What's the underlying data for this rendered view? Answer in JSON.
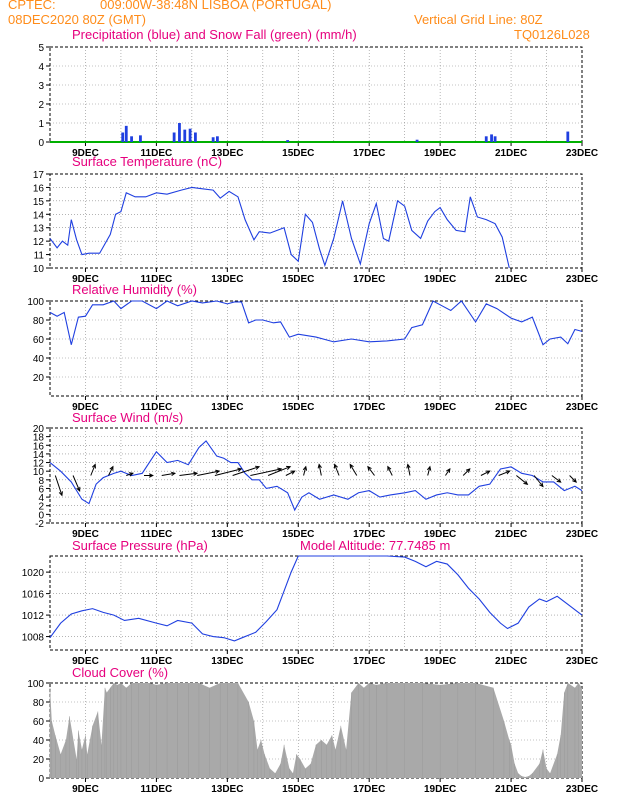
{
  "header": {
    "source": "CPTEC:",
    "location": "009:00W-38:48N  LISBOA (PORTUGAL)",
    "run": "08DEC2020 80Z (GMT)",
    "grid_note": "Vertical Grid Line: 80Z",
    "code": "TQ0126L028"
  },
  "x_ticks": [
    "9DEC",
    "11DEC",
    "13DEC",
    "15DEC",
    "17DEC",
    "19DEC",
    "21DEC",
    "23DEC"
  ],
  "colors": {
    "header": "#ff8c1a",
    "title": "#e6007e",
    "line": "#1f3fe0",
    "snow": "#00b000",
    "cloud": "#a9a9a9",
    "wind_arrow": "#000000"
  },
  "chart_data": [
    {
      "id": "precip",
      "type": "bar",
      "title": "Precipitation (blue) and Snow Fall (green) (mm/h)",
      "ylim": [
        0,
        5
      ],
      "yticks": [
        "0",
        "1",
        "2",
        "3",
        "4",
        "5"
      ],
      "series": [
        {
          "name": "Precipitation",
          "x": [
            10.05,
            10.15,
            10.3,
            10.55,
            11.5,
            11.65,
            11.8,
            11.95,
            12.1,
            12.6,
            12.72,
            14.7,
            18.35,
            20.3,
            20.45,
            20.55,
            22.6
          ],
          "values": [
            0.5,
            0.85,
            0.3,
            0.35,
            0.5,
            1.0,
            0.65,
            0.7,
            0.5,
            0.25,
            0.3,
            0.1,
            0.12,
            0.3,
            0.4,
            0.3,
            0.55
          ]
        },
        {
          "name": "Snow Fall",
          "x": [
            8.0,
            23.0
          ],
          "values": [
            0.0,
            0.0
          ]
        }
      ]
    },
    {
      "id": "temp",
      "type": "line",
      "title": "Surface Temperature (nC)",
      "ylim": [
        10,
        17
      ],
      "yticks": [
        "10",
        "11",
        "12",
        "13",
        "14",
        "15",
        "16",
        "17"
      ],
      "x": [
        8.0,
        8.2,
        8.35,
        8.5,
        8.6,
        8.75,
        8.9,
        9.1,
        9.4,
        9.7,
        9.85,
        10.0,
        10.15,
        10.4,
        10.7,
        11.0,
        11.3,
        11.7,
        12.0,
        12.3,
        12.6,
        12.8,
        13.05,
        13.3,
        13.5,
        13.75,
        13.9,
        14.2,
        14.6,
        14.8,
        15.0,
        15.2,
        15.4,
        15.6,
        15.75,
        16.0,
        16.25,
        16.5,
        16.75,
        17.0,
        17.2,
        17.4,
        17.55,
        17.8,
        18.0,
        18.2,
        18.45,
        18.65,
        18.85,
        19.0,
        19.2,
        19.45,
        19.7,
        19.85,
        20.05,
        20.3,
        20.55,
        20.75,
        20.95
      ],
      "values": [
        12.2,
        11.5,
        12.0,
        11.7,
        13.6,
        12.1,
        11.0,
        11.1,
        11.1,
        12.5,
        14.0,
        14.2,
        15.6,
        15.3,
        15.3,
        15.6,
        15.5,
        15.8,
        16.0,
        15.9,
        15.8,
        15.2,
        15.7,
        15.3,
        13.6,
        12.1,
        12.7,
        12.6,
        13.0,
        11.0,
        10.5,
        14.0,
        13.4,
        11.4,
        10.2,
        12.2,
        15.0,
        12.2,
        10.3,
        13.3,
        14.8,
        12.2,
        12.0,
        15.0,
        14.6,
        12.8,
        12.2,
        13.5,
        14.2,
        14.5,
        13.6,
        12.8,
        12.7,
        15.3,
        13.8,
        13.6,
        13.3,
        12.3,
        10.0
      ]
    },
    {
      "id": "rh",
      "type": "line",
      "title": "Relative Humidity (%)",
      "ylim": [
        0,
        100
      ],
      "yticks": [
        "20",
        "40",
        "60",
        "80",
        "100"
      ],
      "x": [
        8.0,
        8.2,
        8.4,
        8.6,
        8.8,
        9.0,
        9.2,
        9.5,
        9.8,
        10.0,
        10.3,
        10.6,
        11.0,
        11.3,
        11.6,
        12.0,
        12.3,
        12.7,
        13.0,
        13.2,
        13.4,
        13.6,
        13.8,
        14.0,
        14.3,
        14.5,
        14.75,
        15.0,
        15.5,
        16.0,
        16.5,
        17.0,
        17.5,
        18.0,
        18.2,
        18.5,
        18.8,
        19.0,
        19.3,
        19.6,
        20.0,
        20.3,
        20.6,
        21.0,
        21.3,
        21.6,
        21.9,
        22.1,
        22.4,
        22.6,
        22.8,
        23.0
      ],
      "values": [
        88,
        84,
        88,
        54,
        83,
        84,
        96,
        96,
        100,
        92,
        100,
        100,
        92,
        100,
        95,
        100,
        98,
        100,
        97,
        99,
        99,
        77,
        80,
        80,
        77,
        78,
        62,
        65,
        62,
        57,
        60,
        57,
        58,
        60,
        72,
        75,
        100,
        96,
        90,
        100,
        78,
        97,
        92,
        82,
        78,
        83,
        54,
        60,
        62,
        55,
        70,
        68
      ]
    },
    {
      "id": "wind",
      "type": "line",
      "title": "Surface Wind (m/s)",
      "ylim": [
        -2,
        20
      ],
      "yticks": [
        "-2",
        "0",
        "2",
        "4",
        "6",
        "8",
        "10",
        "12",
        "14",
        "16",
        "18",
        "20"
      ],
      "x": [
        8.0,
        8.3,
        8.6,
        8.9,
        9.1,
        9.3,
        9.5,
        9.8,
        10.0,
        10.3,
        10.6,
        11.0,
        11.3,
        11.6,
        11.9,
        12.2,
        12.4,
        12.7,
        12.9,
        13.1,
        13.3,
        13.5,
        13.7,
        13.9,
        14.1,
        14.4,
        14.7,
        14.9,
        15.1,
        15.3,
        15.6,
        16.0,
        16.4,
        16.7,
        17.0,
        17.3,
        17.6,
        18.0,
        18.3,
        18.6,
        18.9,
        19.2,
        19.5,
        19.8,
        20.1,
        20.4,
        20.7,
        21.0,
        21.3,
        21.6,
        21.9,
        22.2,
        22.5,
        22.8,
        23.0
      ],
      "values": [
        12,
        10,
        7.5,
        3.5,
        2.5,
        7,
        8.5,
        9.5,
        10,
        9,
        9.5,
        14.5,
        12,
        12.5,
        11.5,
        15.5,
        17,
        13.5,
        13,
        12,
        12,
        9.5,
        8,
        8,
        6,
        6.5,
        5,
        1,
        4,
        5,
        3.5,
        4.5,
        3.5,
        5,
        5.5,
        4,
        4.5,
        5,
        5.5,
        3.5,
        4.5,
        5,
        4.5,
        4.5,
        6.5,
        7,
        10.5,
        11,
        9.5,
        9,
        7.5,
        7.5,
        5.5,
        6.5,
        5.5
      ],
      "arrows": {
        "x": [
          8.15,
          8.65,
          9.15,
          9.65,
          10.15,
          10.65,
          11.15,
          11.65,
          12.15,
          12.65,
          13.15,
          13.65,
          14.15,
          14.65,
          15.15,
          15.65,
          16.15,
          16.65,
          17.15,
          17.65,
          18.15,
          18.65,
          19.15,
          19.65,
          20.15,
          20.65,
          21.15,
          21.65,
          22.15,
          22.65
        ],
        "u": [
          3,
          3,
          2,
          2,
          3,
          4,
          6,
          8,
          10,
          12,
          12,
          14,
          10,
          4,
          1,
          -1,
          -2,
          -3,
          -3,
          -2,
          -1,
          1,
          2,
          3,
          4,
          5,
          5,
          4,
          4,
          3
        ],
        "v": [
          -9,
          -7,
          5,
          4,
          1,
          0,
          1,
          1,
          2,
          3,
          4,
          3,
          4,
          2,
          4,
          5,
          5,
          5,
          4,
          4,
          5,
          4,
          3,
          3,
          2,
          2,
          -4,
          -5,
          -3,
          -3
        ]
      }
    },
    {
      "id": "pressure",
      "type": "line",
      "title": "Surface Pressure (hPa)",
      "altitude_label": "Model Altitude: 77.7485 m",
      "ylim": [
        1005.5,
        1023
      ],
      "yticks": [
        "1008",
        "1012",
        "1016",
        "1020"
      ],
      "x": [
        8.0,
        8.3,
        8.6,
        8.9,
        9.2,
        9.5,
        9.8,
        10.1,
        10.5,
        11.0,
        11.3,
        11.6,
        12.0,
        12.3,
        12.6,
        12.9,
        13.2,
        13.5,
        13.8,
        14.1,
        14.4,
        14.6,
        14.8,
        15.0,
        15.3,
        15.6,
        16.0,
        16.5,
        17.0,
        17.5,
        18.0,
        18.3,
        18.6,
        18.9,
        19.2,
        19.5,
        19.8,
        20.1,
        20.4,
        20.7,
        20.9,
        21.2,
        21.5,
        21.8,
        22.0,
        22.3,
        22.6,
        22.9,
        23.0
      ],
      "values": [
        1007.8,
        1010.5,
        1012.2,
        1012.8,
        1013.2,
        1012.5,
        1012.0,
        1011.0,
        1011.4,
        1010.5,
        1010.0,
        1011.0,
        1010.5,
        1008.5,
        1008.0,
        1007.8,
        1007.2,
        1008.0,
        1008.8,
        1010.8,
        1013.0,
        1016.5,
        1020.0,
        1023.0,
        1023.0,
        1023.0,
        1023.0,
        1023.0,
        1023.0,
        1023.0,
        1022.8,
        1022.0,
        1021.0,
        1022.0,
        1021.5,
        1019.5,
        1017.0,
        1015.0,
        1012.5,
        1010.5,
        1009.5,
        1010.5,
        1013.5,
        1015.0,
        1014.5,
        1015.5,
        1014.0,
        1012.5,
        1012.0
      ]
    },
    {
      "id": "cloud",
      "type": "area",
      "title": "Cloud Cover (%)",
      "ylim": [
        0,
        100
      ],
      "yticks": [
        "0",
        "20",
        "40",
        "60",
        "80",
        "100"
      ],
      "x": [
        8.0,
        8.05,
        8.15,
        8.3,
        8.45,
        8.55,
        8.75,
        8.8,
        8.9,
        9.0,
        9.05,
        9.2,
        9.35,
        9.45,
        9.55,
        9.6,
        9.7,
        9.8,
        9.9,
        10.0,
        10.15,
        10.3,
        10.5,
        10.8,
        11.0,
        11.3,
        11.6,
        11.9,
        12.2,
        12.5,
        12.8,
        13.0,
        13.3,
        13.6,
        13.75,
        13.85,
        13.95,
        14.05,
        14.2,
        14.35,
        14.5,
        14.6,
        14.75,
        14.85,
        14.95,
        15.05,
        15.2,
        15.35,
        15.5,
        15.65,
        15.8,
        15.95,
        16.05,
        16.2,
        16.35,
        16.5,
        16.7,
        16.85,
        17.0,
        17.2,
        17.5,
        18.0,
        18.5,
        19.0,
        19.5,
        20.0,
        20.5,
        20.8,
        20.95,
        21.0,
        21.1,
        21.2,
        21.3,
        21.4,
        21.5,
        21.6,
        21.8,
        21.9,
        22.0,
        22.1,
        22.3,
        22.4,
        22.5,
        22.6,
        22.8,
        22.9,
        23.0
      ],
      "values": [
        95,
        60,
        45,
        25,
        40,
        65,
        20,
        50,
        30,
        45,
        25,
        55,
        70,
        35,
        95,
        90,
        95,
        100,
        98,
        100,
        95,
        100,
        100,
        100,
        98,
        100,
        100,
        100,
        100,
        95,
        100,
        100,
        100,
        80,
        60,
        30,
        40,
        25,
        10,
        5,
        15,
        35,
        10,
        5,
        25,
        20,
        10,
        15,
        35,
        40,
        35,
        45,
        30,
        55,
        30,
        90,
        100,
        95,
        100,
        98,
        100,
        100,
        100,
        98,
        100,
        100,
        95,
        60,
        40,
        35,
        15,
        5,
        2,
        1,
        2,
        5,
        15,
        30,
        10,
        5,
        25,
        45,
        90,
        100,
        95,
        100,
        95
      ]
    }
  ]
}
